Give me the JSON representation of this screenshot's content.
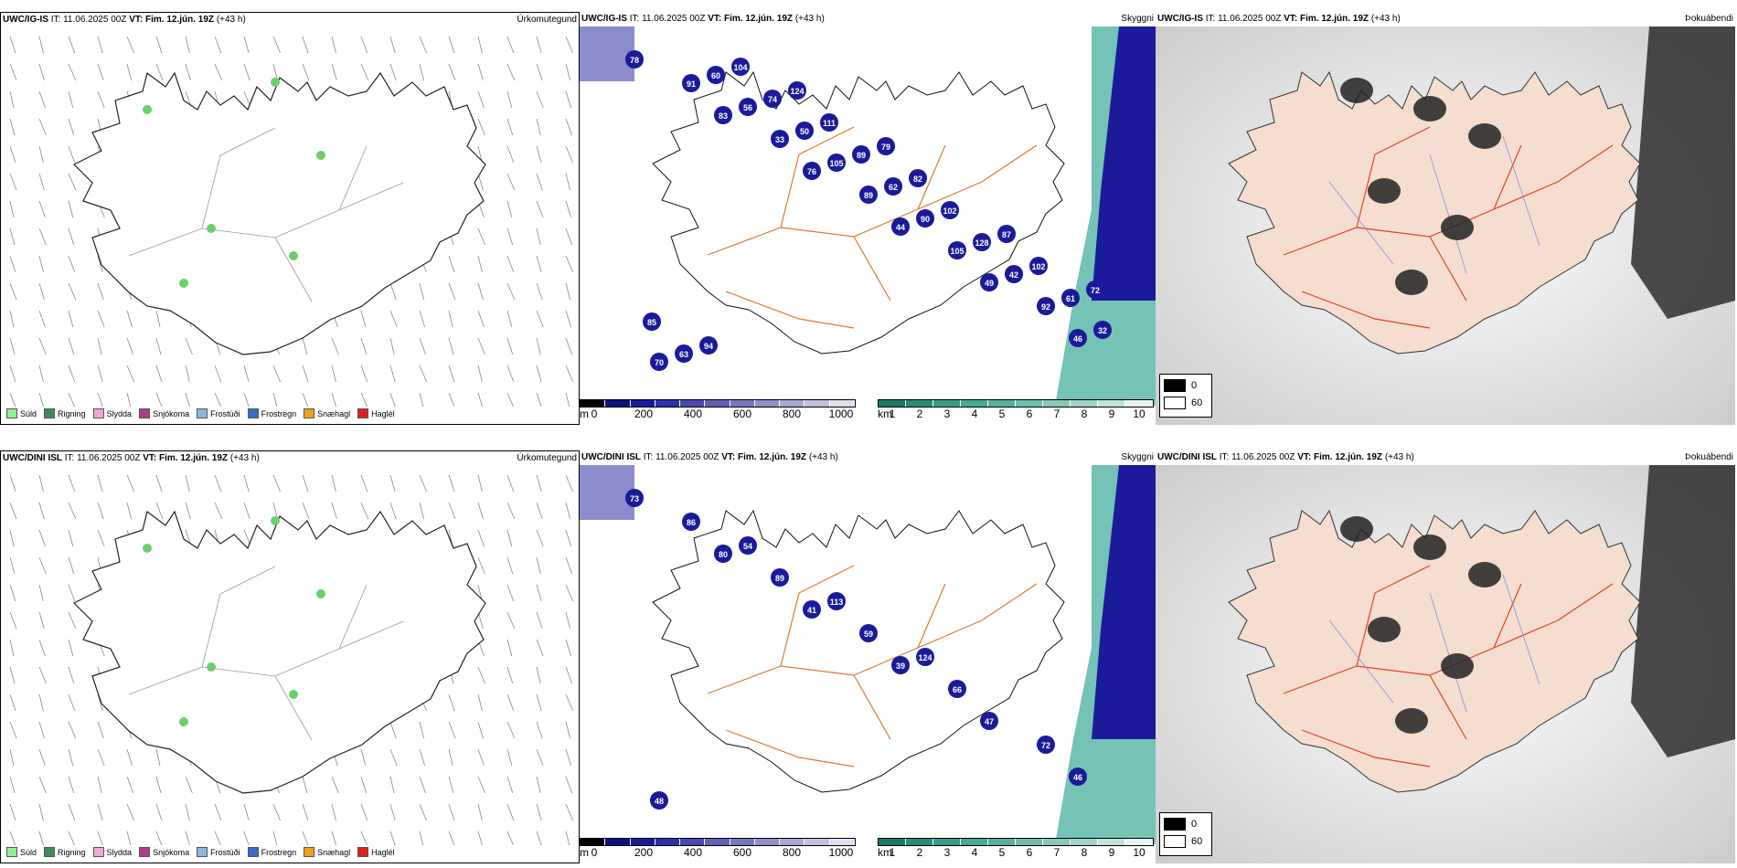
{
  "panels": {
    "top": {
      "precip": {
        "model": "UWC/IG-IS",
        "it": "IT: 11.06.2025 00Z",
        "vt_label": "VT:",
        "vt": "Fim. 12.jún. 19Z",
        "lead": "(+43 h)",
        "title": "Úrkomutegund"
      },
      "vis": {
        "model": "UWC/IG-IS",
        "it": "IT: 11.06.2025 00Z",
        "vt_label": "VT:",
        "vt": "Fim. 12.jún. 19Z",
        "lead": "(+43 h)",
        "title": "Skyggni",
        "labels": [
          "78",
          "83",
          "76",
          "44",
          "49",
          "46",
          "91",
          "33",
          "89",
          "105",
          "92",
          "70",
          "56",
          "105",
          "90",
          "42",
          "32",
          "60",
          "50",
          "62",
          "128",
          "61",
          "63",
          "74",
          "89",
          "102",
          "102",
          "85",
          "104",
          "111",
          "82",
          "87",
          "72",
          "94",
          "124",
          "79"
        ]
      },
      "fog": {
        "model": "UWC/IG-IS",
        "it": "IT: 11.06.2025 00Z",
        "vt_label": "VT:",
        "vt": "Fim. 12.jún. 19Z",
        "lead": "(+43 h)",
        "title": "Þokuábendi"
      }
    },
    "bottom": {
      "precip": {
        "model": "UWC/DINI ISL",
        "it": "IT: 11.06.2025 00Z",
        "vt_label": "VT:",
        "vt": "Fim. 12.jún. 19Z",
        "lead": "(+43 h)",
        "title": "Úrkomutegund"
      },
      "vis": {
        "model": "UWC/DINI ISL",
        "it": "IT: 11.06.2025 00Z",
        "vt_label": "VT:",
        "vt": "Fim. 12.jún. 19Z",
        "lead": "(+43 h)",
        "title": "Skyggni",
        "labels": [
          "73",
          "80",
          "41",
          "39",
          "47",
          "46",
          "86",
          "89",
          "59",
          "66",
          "72",
          "48",
          "54",
          "113",
          "124"
        ]
      },
      "fog": {
        "model": "UWC/DINI ISL",
        "it": "IT: 11.06.2025 00Z",
        "vt_label": "VT:",
        "vt": "Fim. 12.jún. 19Z",
        "lead": "(+43 h)",
        "title": "Þokuábendi"
      }
    }
  },
  "precip_legend": [
    {
      "label": "Súld",
      "color": "#90ee90"
    },
    {
      "label": "Rigning",
      "color": "#3c8c5a"
    },
    {
      "label": "Slydda",
      "color": "#f4a6d4"
    },
    {
      "label": "Snjókoma",
      "color": "#b03a8c"
    },
    {
      "label": "Frostúði",
      "color": "#8ab8e6"
    },
    {
      "label": "Frostregn",
      "color": "#3a6cc8"
    },
    {
      "label": "Snæhagl",
      "color": "#f0a020"
    },
    {
      "label": "Haglél",
      "color": "#e02020"
    }
  ],
  "vis_colorbar_m": {
    "unit": "m",
    "ticks": [
      "0",
      "200",
      "400",
      "600",
      "800",
      "1000"
    ]
  },
  "vis_colorbar_km": {
    "unit": "km",
    "ticks": [
      "1",
      "2",
      "3",
      "4",
      "5",
      "6",
      "7",
      "8",
      "9",
      "10"
    ]
  },
  "fog_legend": [
    {
      "label": "0",
      "color": "#000000"
    },
    {
      "label": "60",
      "color": "#ffffff"
    }
  ],
  "colors": {
    "road": "#e07830",
    "fog_land": "#f5ddd0",
    "fog_road": "#e04020",
    "fog_river": "#8090e0",
    "vis_low": "#1a1a9a",
    "vis_sea": "#3aa898"
  }
}
